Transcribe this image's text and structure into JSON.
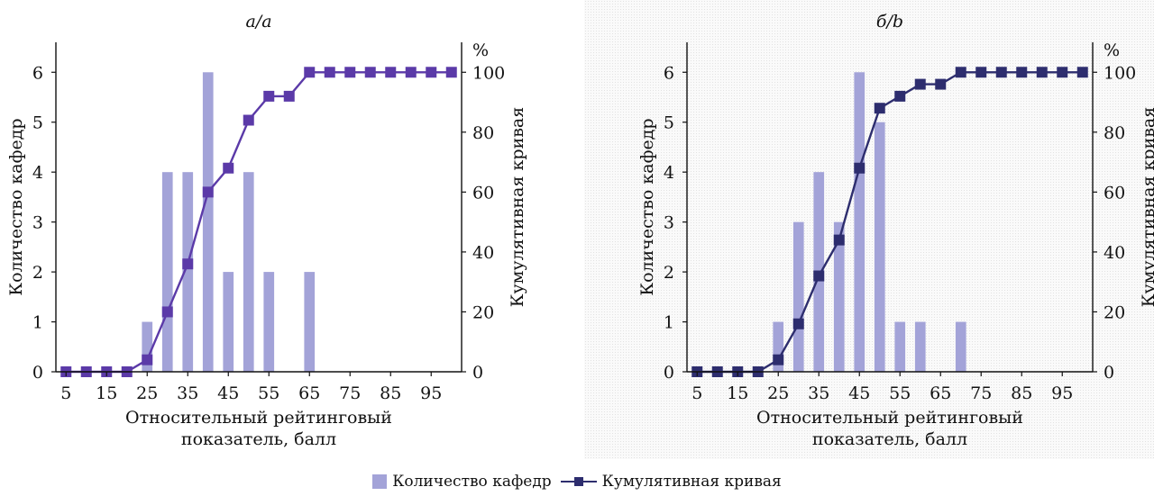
{
  "colors": {
    "bar": "#a3a3d8",
    "line_a": "#5b3aa8",
    "line_b": "#2d2d6e",
    "axis": "#111111"
  },
  "legend": {
    "bars_label": "Количество кафедр",
    "line_label": "Кумулятивная кривая"
  },
  "chart_data": [
    {
      "type": "bar",
      "title": "а/a",
      "xlabel": "Относительный рейтинговый показатель, балл",
      "ylabel": "Количество кафедр",
      "y2label": "Кумулятивная кривая",
      "y2unit": "%",
      "x_ticks": [
        5,
        15,
        25,
        35,
        45,
        55,
        65,
        75,
        85,
        95
      ],
      "y_ticks": [
        0,
        1,
        2,
        3,
        4,
        5,
        6
      ],
      "y2_ticks": [
        0,
        20,
        40,
        60,
        80,
        100
      ],
      "ylim": [
        0,
        6.6
      ],
      "y2lim": [
        0,
        110
      ],
      "xlim": [
        2.5,
        102.5
      ],
      "x": [
        5,
        10,
        15,
        20,
        25,
        30,
        35,
        40,
        45,
        50,
        55,
        60,
        65,
        70,
        75,
        80,
        85,
        90,
        95,
        100
      ],
      "series": [
        {
          "name": "Количество кафедр",
          "type": "bar",
          "values": [
            0,
            0,
            0,
            0,
            1,
            4,
            4,
            6,
            2,
            4,
            2,
            0,
            2,
            0,
            0,
            0,
            0,
            0,
            0,
            0
          ]
        },
        {
          "name": "Кумулятивная кривая",
          "type": "line",
          "axis": "right",
          "values": [
            0,
            0,
            0,
            0,
            4,
            20,
            36,
            60,
            68,
            84,
            92,
            92,
            100,
            100,
            100,
            100,
            100,
            100,
            100,
            100
          ]
        }
      ]
    },
    {
      "type": "bar",
      "title": "б/b",
      "xlabel": "Относительный рейтинговый показатель, балл",
      "ylabel": "Количество кафедр",
      "y2label": "Кумулятивная кривая",
      "y2unit": "%",
      "x_ticks": [
        5,
        15,
        25,
        35,
        45,
        55,
        65,
        75,
        85,
        95
      ],
      "y_ticks": [
        0,
        1,
        2,
        3,
        4,
        5,
        6
      ],
      "y2_ticks": [
        0,
        20,
        40,
        60,
        80,
        100
      ],
      "ylim": [
        0,
        6.6
      ],
      "y2lim": [
        0,
        110
      ],
      "xlim": [
        2.5,
        102.5
      ],
      "x": [
        5,
        10,
        15,
        20,
        25,
        30,
        35,
        40,
        45,
        50,
        55,
        60,
        65,
        70,
        75,
        80,
        85,
        90,
        95,
        100
      ],
      "series": [
        {
          "name": "Количество кафедр",
          "type": "bar",
          "values": [
            0,
            0,
            0,
            0,
            1,
            3,
            4,
            3,
            6,
            5,
            1,
            1,
            0,
            1,
            0,
            0,
            0,
            0,
            0,
            0
          ]
        },
        {
          "name": "Кумулятивная кривая",
          "type": "line",
          "axis": "right",
          "values": [
            0,
            0,
            0,
            0,
            4,
            16,
            32,
            44,
            68,
            88,
            92,
            96,
            96,
            100,
            100,
            100,
            100,
            100,
            100,
            100
          ]
        }
      ]
    }
  ]
}
